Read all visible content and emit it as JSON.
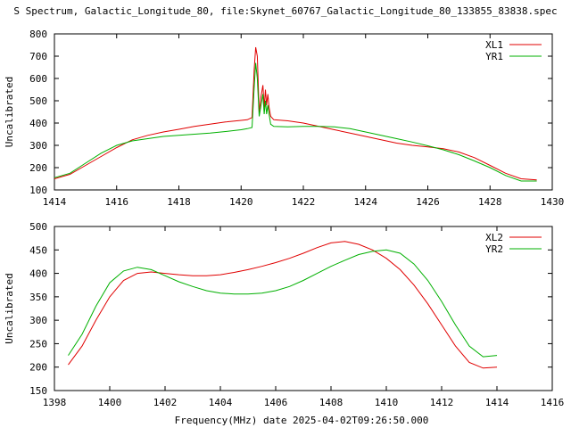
{
  "title": "S Spectrum, Galactic_Longitude_80, file:Skynet_60767_Galactic_Longitude_80_133855_83838.spec",
  "xlabel": "Frequency(MHz) date 2025-04-02T09:26:50.000",
  "chart_data": [
    {
      "type": "line",
      "ylabel": "Uncalibrated",
      "xlim": [
        1414,
        1430
      ],
      "ylim": [
        100,
        800
      ],
      "xticks": [
        "1414",
        "1416",
        "1418",
        "1420",
        "1422",
        "1424",
        "1426",
        "1428",
        "1430"
      ],
      "yticks": [
        "100",
        "200",
        "300",
        "400",
        "500",
        "600",
        "700",
        "800"
      ],
      "legend": "top-right",
      "series": [
        {
          "name": "XL1",
          "color": "#e00000",
          "x": [
            1414.0,
            1414.5,
            1415.0,
            1415.5,
            1416.0,
            1416.5,
            1417.0,
            1417.5,
            1418.0,
            1418.5,
            1419.0,
            1419.5,
            1420.0,
            1420.2,
            1420.35,
            1420.42,
            1420.47,
            1420.52,
            1420.58,
            1420.64,
            1420.7,
            1420.74,
            1420.78,
            1420.82,
            1420.86,
            1420.9,
            1420.95,
            1421.05,
            1421.5,
            1422.0,
            1422.5,
            1423.0,
            1423.5,
            1424.0,
            1424.5,
            1425.0,
            1425.5,
            1426.0,
            1426.5,
            1427.0,
            1427.5,
            1428.0,
            1428.5,
            1429.0,
            1429.5
          ],
          "y": [
            150,
            170,
            210,
            250,
            290,
            325,
            345,
            360,
            372,
            385,
            395,
            405,
            412,
            415,
            425,
            640,
            740,
            700,
            450,
            520,
            570,
            470,
            550,
            480,
            530,
            470,
            430,
            415,
            410,
            400,
            385,
            370,
            355,
            340,
            325,
            310,
            300,
            293,
            285,
            270,
            245,
            210,
            175,
            150,
            145
          ]
        },
        {
          "name": "YR1",
          "color": "#00b000",
          "x": [
            1414.0,
            1414.5,
            1415.0,
            1415.5,
            1416.0,
            1416.5,
            1417.0,
            1417.5,
            1418.0,
            1418.5,
            1419.0,
            1419.5,
            1420.0,
            1420.2,
            1420.35,
            1420.42,
            1420.47,
            1420.52,
            1420.58,
            1420.64,
            1420.7,
            1420.74,
            1420.78,
            1420.82,
            1420.86,
            1420.9,
            1420.95,
            1421.05,
            1421.5,
            1422.0,
            1422.5,
            1423.0,
            1423.5,
            1424.0,
            1424.5,
            1425.0,
            1425.5,
            1426.0,
            1426.5,
            1427.0,
            1427.5,
            1428.0,
            1428.5,
            1429.0,
            1429.5
          ],
          "y": [
            155,
            175,
            220,
            265,
            300,
            320,
            330,
            340,
            345,
            350,
            355,
            362,
            370,
            375,
            380,
            560,
            670,
            600,
            430,
            480,
            530,
            440,
            500,
            440,
            480,
            440,
            395,
            385,
            383,
            385,
            385,
            383,
            375,
            360,
            345,
            330,
            315,
            298,
            280,
            258,
            230,
            200,
            165,
            140,
            140
          ]
        }
      ]
    },
    {
      "type": "line",
      "ylabel": "Uncalibrated",
      "xlim": [
        1398,
        1416
      ],
      "ylim": [
        150,
        500
      ],
      "xticks": [
        "1398",
        "1400",
        "1402",
        "1404",
        "1406",
        "1408",
        "1410",
        "1412",
        "1414",
        "1416"
      ],
      "yticks": [
        "150",
        "200",
        "250",
        "300",
        "350",
        "400",
        "450",
        "500"
      ],
      "legend": "top-right",
      "series": [
        {
          "name": "XL2",
          "color": "#e00000",
          "x": [
            1398.5,
            1399.0,
            1399.5,
            1400.0,
            1400.5,
            1401.0,
            1401.5,
            1402.0,
            1402.5,
            1403.0,
            1403.5,
            1404.0,
            1404.5,
            1405.0,
            1405.5,
            1406.0,
            1406.5,
            1407.0,
            1407.5,
            1408.0,
            1408.5,
            1409.0,
            1409.5,
            1410.0,
            1410.5,
            1411.0,
            1411.5,
            1412.0,
            1412.5,
            1413.0,
            1413.5,
            1414.0
          ],
          "y": [
            205,
            245,
            300,
            350,
            385,
            400,
            403,
            400,
            397,
            395,
            395,
            397,
            402,
            408,
            415,
            423,
            432,
            443,
            455,
            465,
            468,
            462,
            450,
            432,
            408,
            375,
            335,
            290,
            245,
            210,
            198,
            200
          ]
        },
        {
          "name": "YR2",
          "color": "#00b000",
          "x": [
            1398.5,
            1399.0,
            1399.5,
            1400.0,
            1400.5,
            1401.0,
            1401.5,
            1402.0,
            1402.5,
            1403.0,
            1403.5,
            1404.0,
            1404.5,
            1405.0,
            1405.5,
            1406.0,
            1406.5,
            1407.0,
            1407.5,
            1408.0,
            1408.5,
            1409.0,
            1409.5,
            1410.0,
            1410.5,
            1411.0,
            1411.5,
            1412.0,
            1412.5,
            1413.0,
            1413.5,
            1414.0
          ],
          "y": [
            225,
            270,
            330,
            380,
            405,
            413,
            408,
            395,
            382,
            372,
            363,
            358,
            356,
            356,
            358,
            363,
            372,
            385,
            400,
            415,
            428,
            440,
            447,
            450,
            443,
            420,
            385,
            340,
            290,
            245,
            222,
            225
          ]
        }
      ]
    }
  ]
}
